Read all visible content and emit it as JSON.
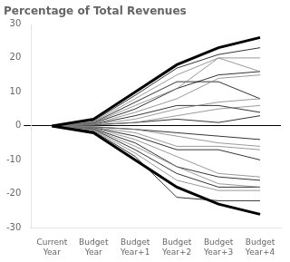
{
  "chart_data": {
    "type": "line",
    "title": "Percentage of Total Revenues",
    "categories": [
      "Current\nYear",
      "Budget\nYear",
      "Budget\nYear+1",
      "Budget\nYear+2",
      "Budget\nYear+3",
      "Budget\nYear+4"
    ],
    "ylim": [
      -30,
      30
    ],
    "yticks": [
      -30,
      -20,
      -10,
      0,
      10,
      20,
      30
    ],
    "grid": false,
    "series": [
      {
        "color": "gray",
        "line_style": "thin",
        "values": [
          0,
          1.2,
          8,
          15,
          20,
          20
        ]
      },
      {
        "color": "gray",
        "line_style": "thin",
        "values": [
          0,
          0.9,
          6,
          11,
          20,
          16
        ]
      },
      {
        "color": "gray",
        "line_style": "thin",
        "values": [
          0,
          0.6,
          4,
          8,
          14,
          15
        ]
      },
      {
        "color": "gray",
        "line_style": "thin",
        "values": [
          0,
          0.4,
          2,
          5,
          7,
          8
        ]
      },
      {
        "color": "gray",
        "line_style": "thin",
        "values": [
          0,
          0.2,
          1,
          3,
          5,
          6
        ]
      },
      {
        "color": "gray",
        "line_style": "thin",
        "values": [
          0,
          -0.2,
          -1,
          -3,
          -5,
          -6
        ]
      },
      {
        "color": "gray",
        "line_style": "thin",
        "values": [
          0,
          -0.4,
          -2,
          -6,
          -6,
          -7
        ]
      },
      {
        "color": "gray",
        "line_style": "thin",
        "values": [
          0,
          -0.6,
          -4,
          -9,
          -14,
          -15
        ]
      },
      {
        "color": "gray",
        "line_style": "thin",
        "values": [
          0,
          -0.9,
          -6,
          -12,
          -17,
          -18
        ]
      },
      {
        "color": "gray",
        "line_style": "thin",
        "values": [
          0,
          -1.2,
          -8,
          -16,
          -19,
          -19
        ]
      },
      {
        "color": "black",
        "line_style": "thin",
        "values": [
          0,
          1.5,
          9,
          17,
          21,
          23
        ]
      },
      {
        "color": "black",
        "line_style": "thin",
        "values": [
          0,
          1.0,
          7,
          13,
          13,
          8
        ]
      },
      {
        "color": "black",
        "line_style": "thin",
        "values": [
          0,
          0.8,
          5,
          11,
          15,
          16
        ]
      },
      {
        "color": "black",
        "line_style": "thin",
        "values": [
          0,
          0.5,
          3,
          6,
          6,
          4
        ]
      },
      {
        "color": "black",
        "line_style": "thin",
        "values": [
          0,
          0.3,
          1,
          2,
          1,
          3
        ]
      },
      {
        "color": "black",
        "line_style": "thin",
        "values": [
          0,
          -0.3,
          -1,
          -2,
          -3,
          -4
        ]
      },
      {
        "color": "black",
        "line_style": "thin",
        "values": [
          0,
          -0.5,
          -3,
          -7,
          -7,
          -10
        ]
      },
      {
        "color": "black",
        "line_style": "thin",
        "values": [
          0,
          -0.8,
          -5,
          -12,
          -15,
          -16
        ]
      },
      {
        "color": "black",
        "line_style": "thin",
        "values": [
          0,
          -1.0,
          -7,
          -14,
          -18,
          -18
        ]
      },
      {
        "color": "black",
        "line_style": "thin",
        "values": [
          0,
          -1.5,
          -9,
          -21,
          -22,
          -22
        ]
      },
      {
        "color": "black",
        "line_style": "thick",
        "values": [
          0,
          2,
          10,
          18,
          23,
          26
        ]
      },
      {
        "color": "black",
        "line_style": "thick",
        "values": [
          0,
          -2,
          -10,
          -18,
          -23,
          -26
        ]
      }
    ]
  }
}
